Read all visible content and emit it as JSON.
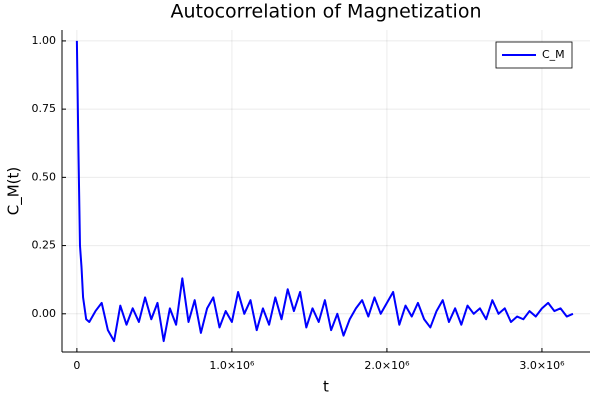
{
  "chart_data": {
    "type": "line",
    "title": "Autocorrelation of Magnetization",
    "x_label": "t",
    "y_label": "C_M(t)",
    "x": [
      0,
      10000,
      20000,
      30000,
      40000,
      60000,
      80000,
      120000,
      160000,
      200000,
      240000,
      280000,
      320000,
      360000,
      400000,
      440000,
      480000,
      520000,
      560000,
      600000,
      640000,
      680000,
      720000,
      760000,
      800000,
      840000,
      880000,
      920000,
      960000,
      1000000,
      1040000,
      1080000,
      1120000,
      1160000,
      1200000,
      1240000,
      1280000,
      1320000,
      1360000,
      1400000,
      1440000,
      1480000,
      1520000,
      1560000,
      1600000,
      1640000,
      1680000,
      1720000,
      1760000,
      1800000,
      1840000,
      1880000,
      1920000,
      1960000,
      2000000,
      2040000,
      2080000,
      2120000,
      2160000,
      2200000,
      2240000,
      2280000,
      2320000,
      2360000,
      2400000,
      2440000,
      2480000,
      2520000,
      2560000,
      2600000,
      2640000,
      2680000,
      2720000,
      2760000,
      2800000,
      2840000,
      2880000,
      2920000,
      2960000,
      3000000,
      3040000,
      3080000,
      3120000,
      3160000,
      3200000
    ],
    "series": [
      {
        "name": "C_M",
        "color": "#0000ff",
        "values": [
          1.0,
          0.6,
          0.25,
          0.17,
          0.06,
          -0.02,
          -0.03,
          0.01,
          0.04,
          -0.06,
          -0.1,
          0.03,
          -0.04,
          0.02,
          -0.03,
          0.06,
          -0.02,
          0.04,
          -0.1,
          0.02,
          -0.04,
          0.13,
          -0.03,
          0.05,
          -0.07,
          0.02,
          0.06,
          -0.05,
          0.01,
          -0.03,
          0.08,
          0.0,
          0.05,
          -0.06,
          0.02,
          -0.04,
          0.06,
          -0.02,
          0.09,
          0.01,
          0.08,
          -0.05,
          0.02,
          -0.03,
          0.05,
          -0.06,
          0.0,
          -0.08,
          -0.02,
          0.02,
          0.05,
          -0.01,
          0.06,
          0.0,
          0.04,
          0.08,
          -0.04,
          0.03,
          -0.01,
          0.04,
          -0.02,
          -0.05,
          0.01,
          0.05,
          -0.03,
          0.02,
          -0.04,
          0.03,
          0.0,
          0.02,
          -0.02,
          0.05,
          0.0,
          0.02,
          -0.03,
          -0.01,
          -0.02,
          0.01,
          -0.01,
          0.02,
          0.04,
          0.01,
          0.02,
          -0.01,
          0.0
        ]
      }
    ],
    "xlim": [
      -96000,
      3310000
    ],
    "ylim": [
      -0.14,
      1.04
    ],
    "xticks": [
      0,
      {
        "value": 1000000,
        "label": "1.0×10⁶"
      },
      {
        "value": 2000000,
        "label": "2.0×10⁶"
      },
      {
        "value": 3000000,
        "label": "3.0×10⁶"
      }
    ],
    "yticks": [
      {
        "value": 0,
        "label": "0.00"
      },
      {
        "value": 0.25,
        "label": "0.25"
      },
      {
        "value": 0.5,
        "label": "0.50"
      },
      {
        "value": 0.75,
        "label": "0.75"
      },
      {
        "value": 1,
        "label": "1.00"
      }
    ],
    "grid": true,
    "legend": "top-right"
  }
}
